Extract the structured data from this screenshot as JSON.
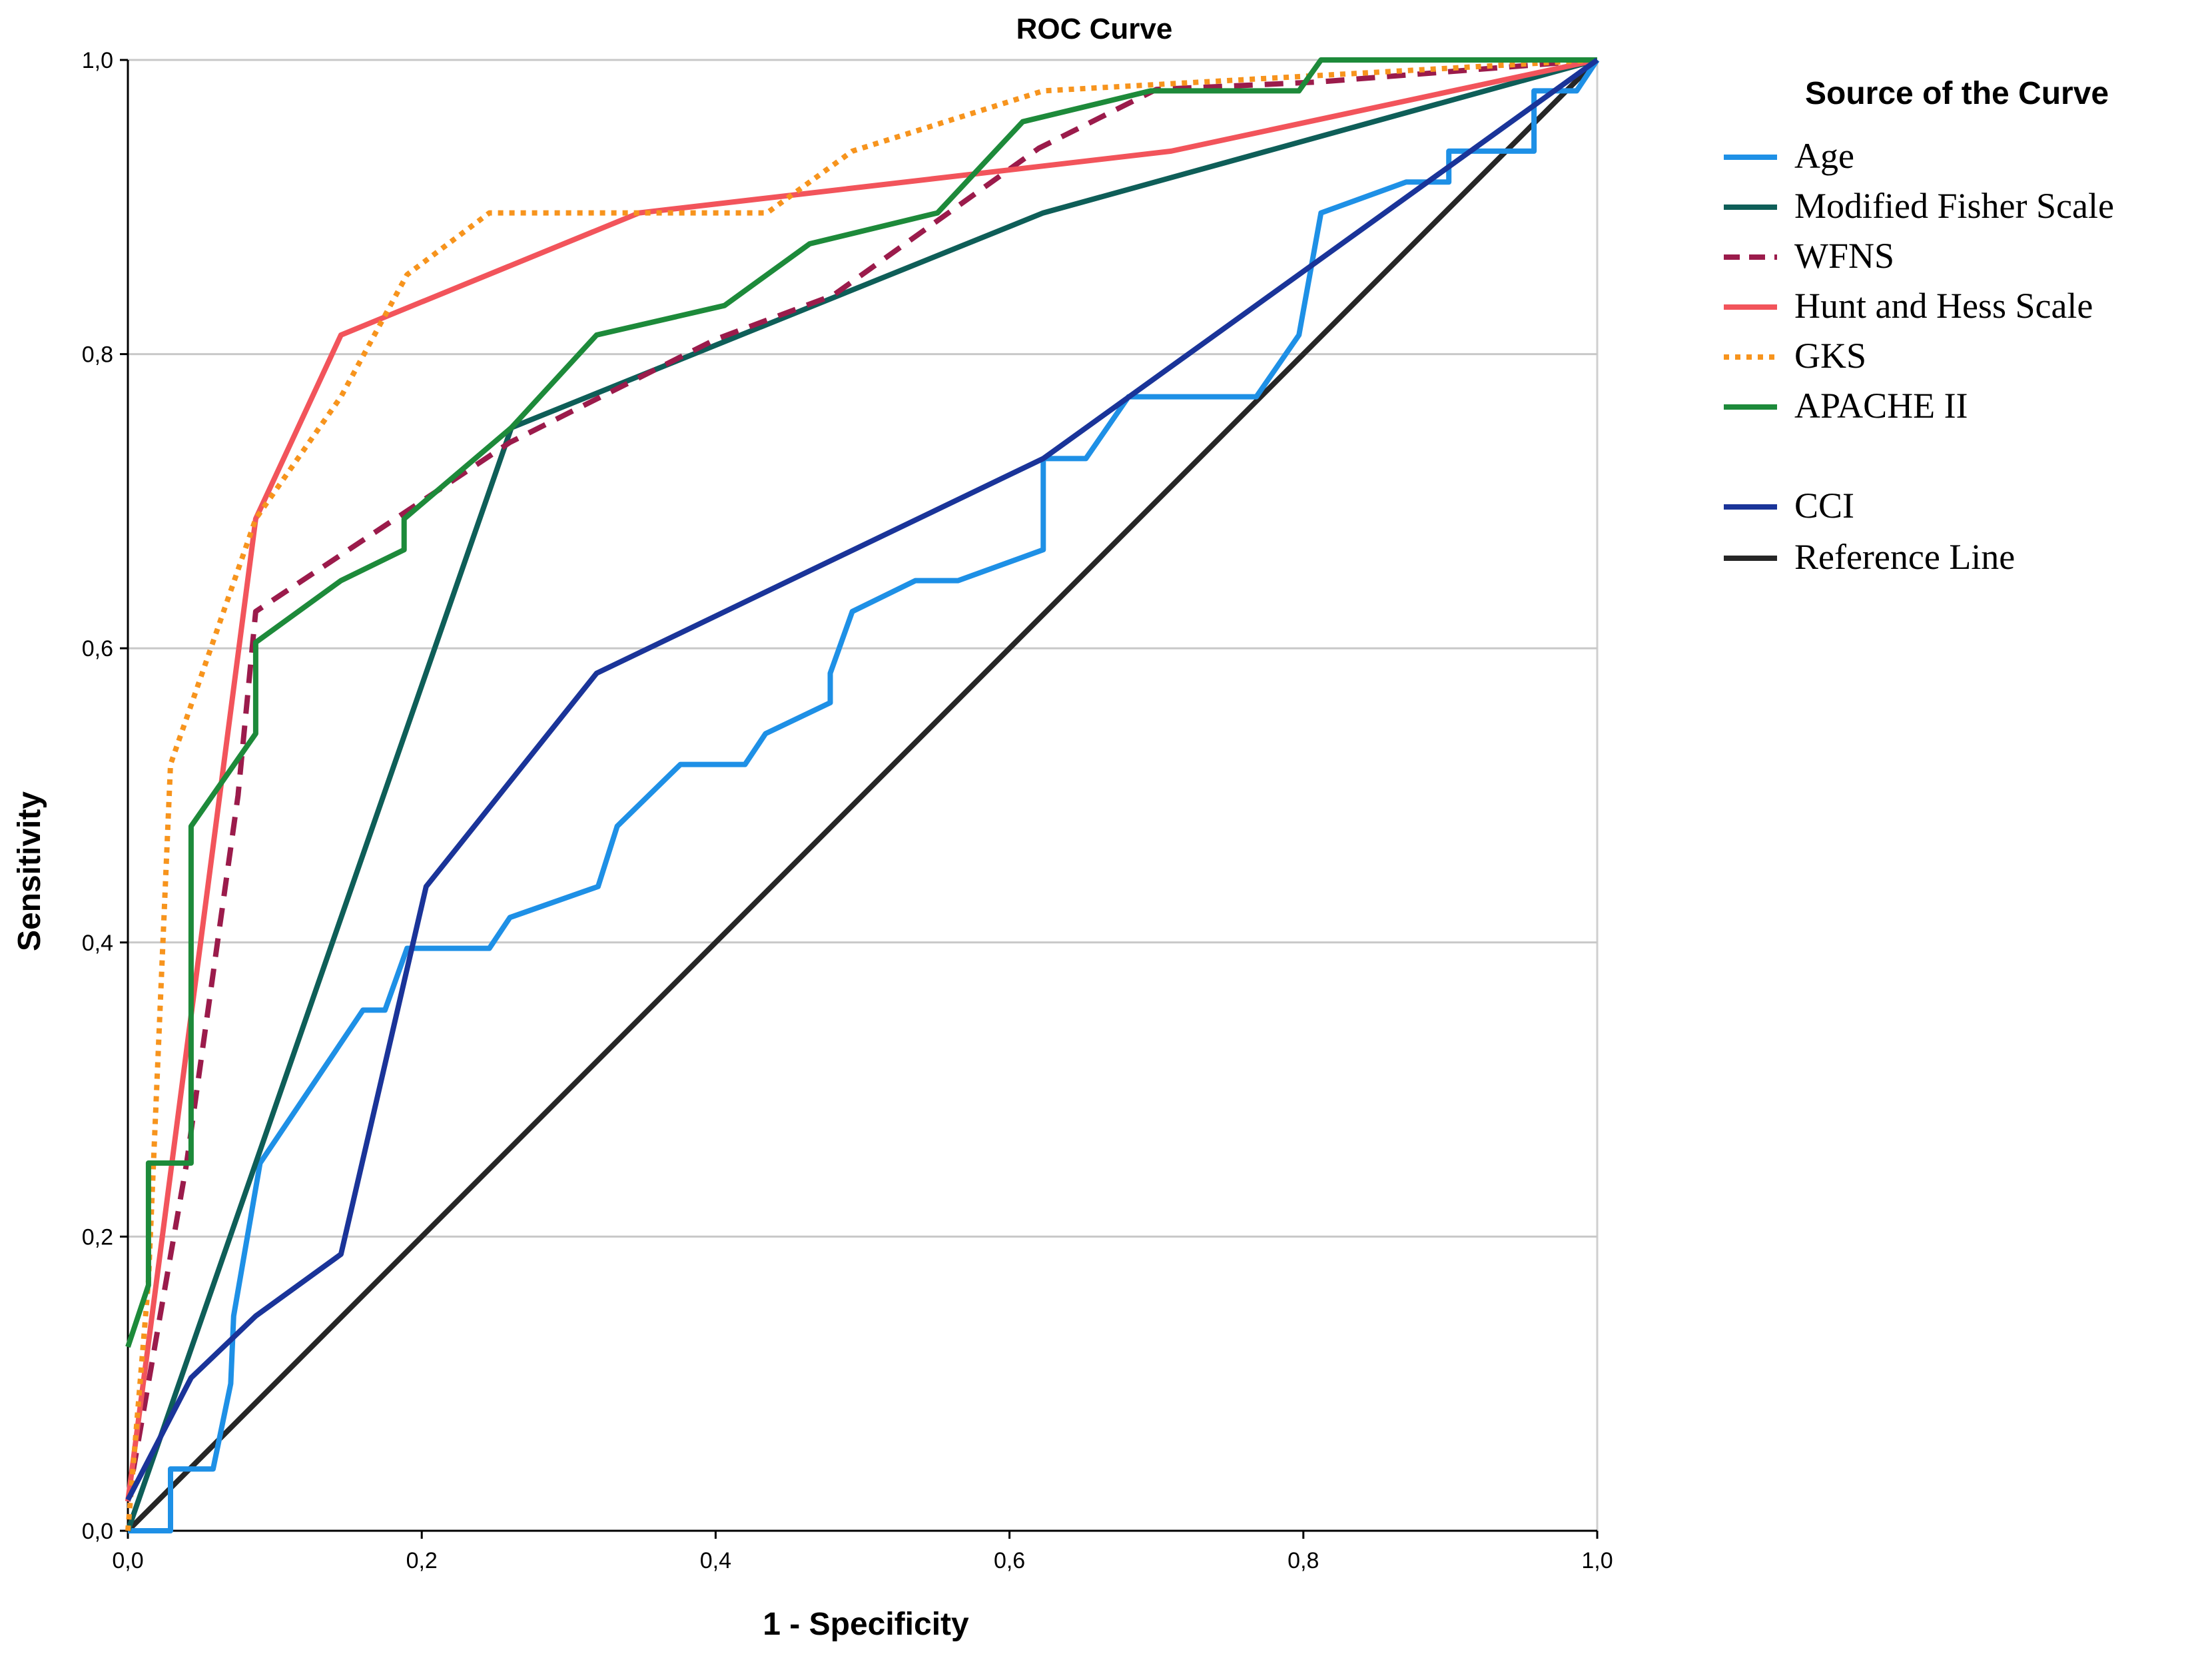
{
  "chart_data": {
    "type": "line",
    "title": "ROC Curve",
    "xlabel": "1 - Specificity",
    "ylabel": "Sensitivity",
    "xlim": [
      0,
      1
    ],
    "ylim": [
      0,
      1
    ],
    "grid": "horizontal",
    "x_ticks": [
      0,
      0.2,
      0.4,
      0.6,
      0.8,
      1.0
    ],
    "y_ticks": [
      0,
      0.2,
      0.4,
      0.6,
      0.8,
      1.0
    ],
    "x_tick_labels": [
      "0,0",
      "0,2",
      "0,4",
      "0,6",
      "0,8",
      "1,0"
    ],
    "y_tick_labels": [
      "0,0",
      "0,2",
      "0,4",
      "0,6",
      "0,8",
      "1,0"
    ],
    "legend": {
      "title": "Source of the Curve",
      "position": "right"
    },
    "series": [
      {
        "name": "Age",
        "color": "#1e90e6",
        "dash": "solid",
        "points": [
          [
            0,
            0
          ],
          [
            0.029,
            0
          ],
          [
            0.029,
            0.042
          ],
          [
            0.058,
            0.042
          ],
          [
            0.07,
            0.1
          ],
          [
            0.072,
            0.146
          ],
          [
            0.09,
            0.25
          ],
          [
            0.16,
            0.354
          ],
          [
            0.175,
            0.354
          ],
          [
            0.19,
            0.396
          ],
          [
            0.246,
            0.396
          ],
          [
            0.26,
            0.417
          ],
          [
            0.32,
            0.438
          ],
          [
            0.333,
            0.479
          ],
          [
            0.376,
            0.521
          ],
          [
            0.42,
            0.521
          ],
          [
            0.434,
            0.542
          ],
          [
            0.478,
            0.563
          ],
          [
            0.478,
            0.583
          ],
          [
            0.493,
            0.625
          ],
          [
            0.536,
            0.646
          ],
          [
            0.565,
            0.646
          ],
          [
            0.623,
            0.667
          ],
          [
            0.623,
            0.729
          ],
          [
            0.652,
            0.729
          ],
          [
            0.681,
            0.771
          ],
          [
            0.768,
            0.771
          ],
          [
            0.797,
            0.813
          ],
          [
            0.812,
            0.896
          ],
          [
            0.87,
            0.917
          ],
          [
            0.899,
            0.917
          ],
          [
            0.899,
            0.938
          ],
          [
            0.957,
            0.938
          ],
          [
            0.957,
            0.979
          ],
          [
            0.986,
            0.979
          ],
          [
            1,
            1
          ]
        ]
      },
      {
        "name": "Modified Fisher Scale",
        "color": "#0e5e58",
        "dash": "solid",
        "points": [
          [
            0,
            0
          ],
          [
            0.261,
            0.75
          ],
          [
            0.623,
            0.896
          ],
          [
            1,
            1
          ]
        ]
      },
      {
        "name": "WFNS",
        "color": "#9b1b4b",
        "dash": "dashed",
        "points": [
          [
            0,
            0.02
          ],
          [
            0.04,
            0.25
          ],
          [
            0.075,
            0.5
          ],
          [
            0.087,
            0.625
          ],
          [
            0.2,
            0.7
          ],
          [
            0.26,
            0.74
          ],
          [
            0.4,
            0.81
          ],
          [
            0.48,
            0.84
          ],
          [
            0.62,
            0.94
          ],
          [
            0.7,
            0.98
          ],
          [
            0.81,
            0.985
          ],
          [
            1,
            1
          ]
        ]
      },
      {
        "name": "Hunt and Hess Scale",
        "color": "#f2545b",
        "dash": "solid",
        "points": [
          [
            0,
            0.02
          ],
          [
            0.087,
            0.688
          ],
          [
            0.145,
            0.813
          ],
          [
            0.348,
            0.896
          ],
          [
            0.71,
            0.938
          ],
          [
            1,
            1
          ]
        ]
      },
      {
        "name": "GKS",
        "color": "#f7941d",
        "dash": "dotted",
        "points": [
          [
            0,
            0
          ],
          [
            0.014,
            0.17
          ],
          [
            0.029,
            0.521
          ],
          [
            0.087,
            0.688
          ],
          [
            0.145,
            0.771
          ],
          [
            0.19,
            0.854
          ],
          [
            0.246,
            0.896
          ],
          [
            0.435,
            0.896
          ],
          [
            0.493,
            0.938
          ],
          [
            0.623,
            0.979
          ],
          [
            1,
            1
          ]
        ]
      },
      {
        "name": "APACHE II",
        "color": "#1d8a3a",
        "dash": "solid",
        "points": [
          [
            0,
            0.125
          ],
          [
            0.014,
            0.167
          ],
          [
            0.014,
            0.25
          ],
          [
            0.043,
            0.25
          ],
          [
            0.043,
            0.479
          ],
          [
            0.087,
            0.542
          ],
          [
            0.087,
            0.604
          ],
          [
            0.145,
            0.646
          ],
          [
            0.188,
            0.667
          ],
          [
            0.188,
            0.688
          ],
          [
            0.261,
            0.75
          ],
          [
            0.319,
            0.813
          ],
          [
            0.406,
            0.833
          ],
          [
            0.464,
            0.875
          ],
          [
            0.551,
            0.896
          ],
          [
            0.609,
            0.958
          ],
          [
            0.696,
            0.979
          ],
          [
            0.797,
            0.979
          ],
          [
            0.812,
            1
          ],
          [
            1,
            1
          ]
        ]
      },
      {
        "name": "CCI",
        "color": "#1a3499",
        "dash": "solid",
        "points": [
          [
            0,
            0.021
          ],
          [
            0.043,
            0.104
          ],
          [
            0.087,
            0.146
          ],
          [
            0.145,
            0.188
          ],
          [
            0.203,
            0.438
          ],
          [
            0.319,
            0.583
          ],
          [
            0.623,
            0.729
          ],
          [
            1,
            1
          ]
        ]
      },
      {
        "name": "Reference Line",
        "color": "#262626",
        "dash": "solid",
        "points": [
          [
            0,
            0
          ],
          [
            1,
            1
          ]
        ]
      }
    ]
  }
}
